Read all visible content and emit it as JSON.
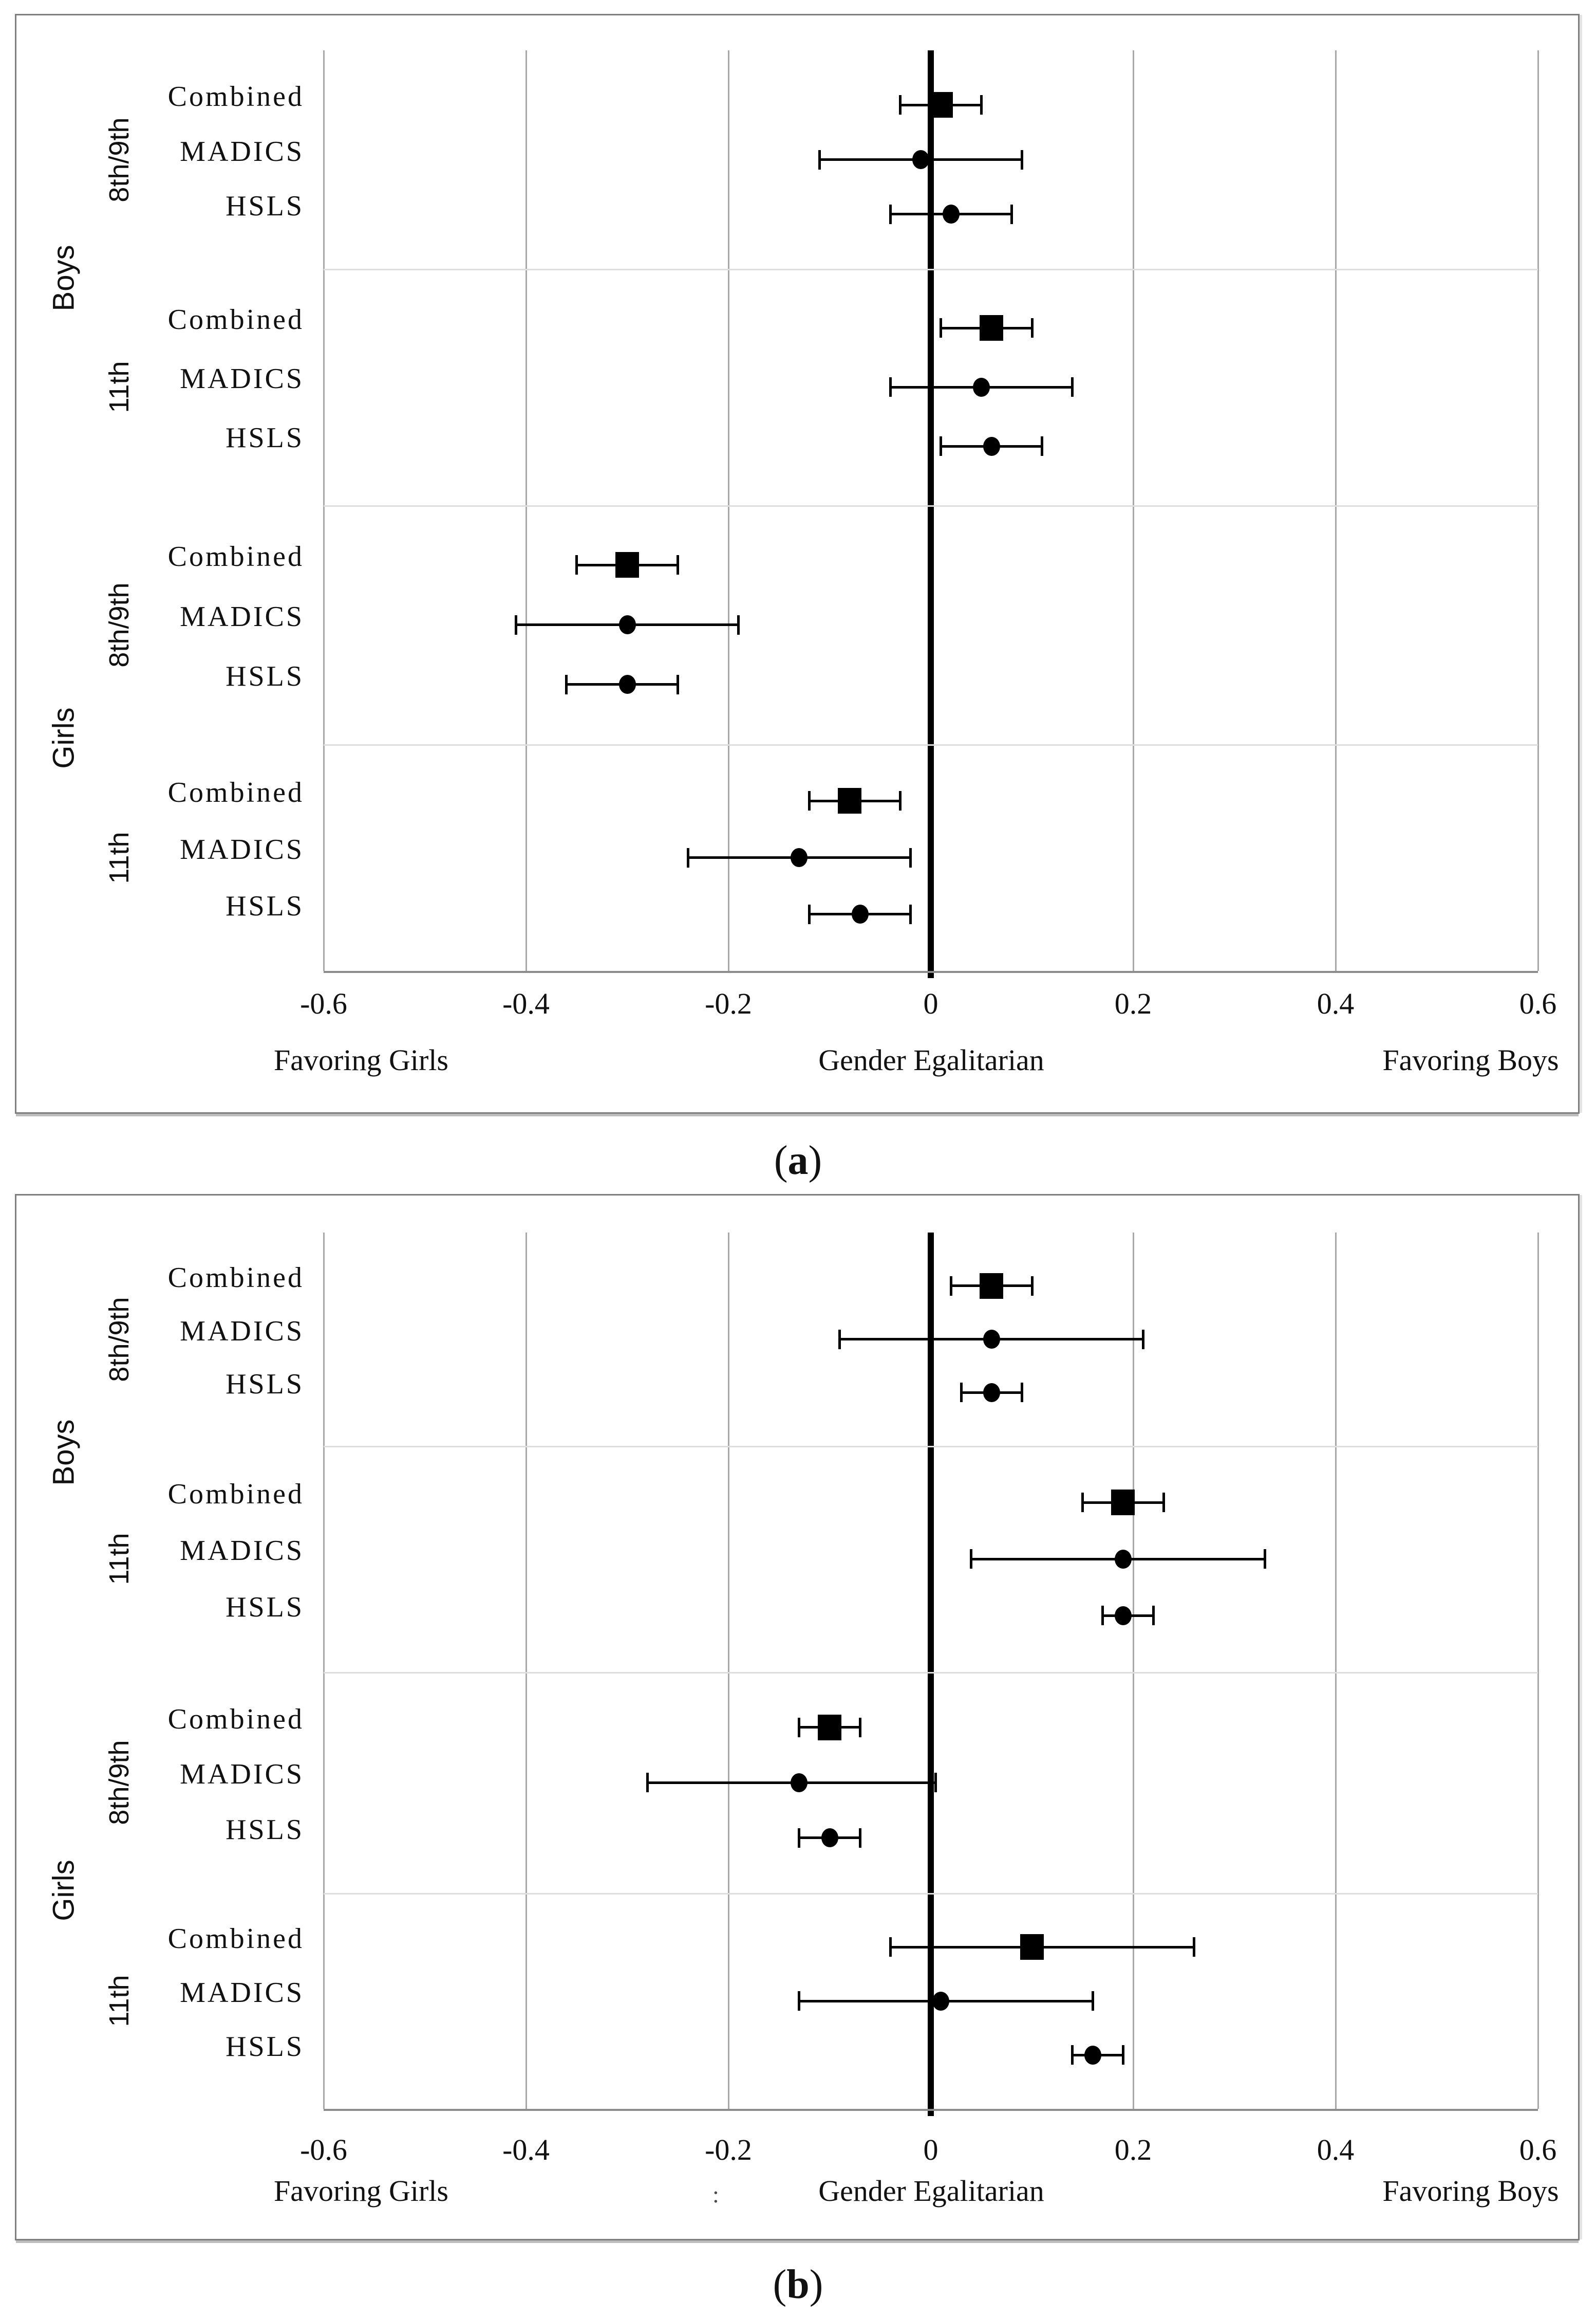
{
  "figure": {
    "captions": {
      "a": {
        "open": "(",
        "letter": "a",
        "close": ")"
      },
      "b": {
        "open": "(",
        "letter": "b",
        "close": ")"
      }
    }
  },
  "chart_data": {
    "type": "scatter",
    "subtype": "forest-plot",
    "layout_hint": "two stacked panels, horizontal error bars, grid on, no legend",
    "colors": {
      "marker": "#000000",
      "zero_line": "#000000",
      "gridline": "#a8a8a8",
      "separator": "#dedede",
      "panel_border": "#7f7f7f",
      "axis_line": "#8c8c8c",
      "text": "#111111"
    },
    "panels": [
      {
        "id": "a",
        "caption": "(a)",
        "axis": {
          "xmin": -0.6,
          "xmax": 0.6,
          "tick_values": [
            -0.6,
            -0.4,
            -0.2,
            0,
            0.2,
            0.4,
            0.6
          ],
          "tick_labels": [
            "-0.6",
            "-0.4",
            "-0.2",
            "0",
            "0.2",
            "0.4",
            "0.6"
          ],
          "left_direction_label": "Favoring Girls",
          "center_direction_label": "Gender Egalitarian",
          "right_direction_label": "Favoring Boys"
        },
        "sections": [
          {
            "label": "Boys"
          },
          {
            "label": "Girls"
          }
        ],
        "groups": [
          {
            "section": "Boys",
            "grade": "8th/9th",
            "rows": [
              {
                "label": "Combined",
                "marker": "square",
                "value": 0.01,
                "ci": [
                  -0.03,
                  0.05
                ]
              },
              {
                "label": "MADICS",
                "marker": "circle",
                "value": -0.01,
                "ci": [
                  -0.11,
                  0.09
                ]
              },
              {
                "label": "HSLS",
                "marker": "circle",
                "value": 0.02,
                "ci": [
                  -0.04,
                  0.08
                ]
              }
            ]
          },
          {
            "section": "Boys",
            "grade": "11th",
            "rows": [
              {
                "label": "Combined",
                "marker": "square",
                "value": 0.06,
                "ci": [
                  0.01,
                  0.1
                ]
              },
              {
                "label": "MADICS",
                "marker": "circle",
                "value": 0.05,
                "ci": [
                  -0.04,
                  0.14
                ]
              },
              {
                "label": "HSLS",
                "marker": "circle",
                "value": 0.06,
                "ci": [
                  0.01,
                  0.11
                ]
              }
            ]
          },
          {
            "section": "Girls",
            "grade": "8th/9th",
            "rows": [
              {
                "label": "Combined",
                "marker": "square",
                "value": -0.3,
                "ci": [
                  -0.35,
                  -0.25
                ]
              },
              {
                "label": "MADICS",
                "marker": "circle",
                "value": -0.3,
                "ci": [
                  -0.41,
                  -0.19
                ]
              },
              {
                "label": "HSLS",
                "marker": "circle",
                "value": -0.3,
                "ci": [
                  -0.36,
                  -0.25
                ]
              }
            ]
          },
          {
            "section": "Girls",
            "grade": "11th",
            "rows": [
              {
                "label": "Combined",
                "marker": "square",
                "value": -0.08,
                "ci": [
                  -0.12,
                  -0.03
                ]
              },
              {
                "label": "MADICS",
                "marker": "circle",
                "value": -0.13,
                "ci": [
                  -0.24,
                  -0.02
                ]
              },
              {
                "label": "HSLS",
                "marker": "circle",
                "value": -0.07,
                "ci": [
                  -0.12,
                  -0.02
                ]
              }
            ]
          }
        ]
      },
      {
        "id": "b",
        "caption": "(b)",
        "stray_mark": ":",
        "axis": {
          "xmin": -0.6,
          "xmax": 0.6,
          "tick_values": [
            -0.6,
            -0.4,
            -0.2,
            0,
            0.2,
            0.4,
            0.6
          ],
          "tick_labels": [
            "-0.6",
            "-0.4",
            "-0.2",
            "0",
            "0.2",
            "0.4",
            "0.6"
          ],
          "left_direction_label": "Favoring Girls",
          "center_direction_label": "Gender Egalitarian",
          "right_direction_label": "Favoring Boys"
        },
        "sections": [
          {
            "label": "Boys"
          },
          {
            "label": "Girls"
          }
        ],
        "groups": [
          {
            "section": "Boys",
            "grade": "8th/9th",
            "rows": [
              {
                "label": "Combined",
                "marker": "square",
                "value": 0.06,
                "ci": [
                  0.02,
                  0.1
                ]
              },
              {
                "label": "MADICS",
                "marker": "circle",
                "value": 0.06,
                "ci": [
                  -0.09,
                  0.21
                ]
              },
              {
                "label": "HSLS",
                "marker": "circle",
                "value": 0.06,
                "ci": [
                  0.03,
                  0.09
                ]
              }
            ]
          },
          {
            "section": "Boys",
            "grade": "11th",
            "rows": [
              {
                "label": "Combined",
                "marker": "square",
                "value": 0.19,
                "ci": [
                  0.15,
                  0.23
                ]
              },
              {
                "label": "MADICS",
                "marker": "circle",
                "value": 0.19,
                "ci": [
                  0.04,
                  0.33
                ]
              },
              {
                "label": "HSLS",
                "marker": "circle",
                "value": 0.19,
                "ci": [
                  0.17,
                  0.22
                ]
              }
            ]
          },
          {
            "section": "Girls",
            "grade": "8th/9th",
            "rows": [
              {
                "label": "Combined",
                "marker": "square",
                "value": -0.1,
                "ci": [
                  -0.13,
                  -0.07
                ]
              },
              {
                "label": "MADICS",
                "marker": "circle",
                "value": -0.13,
                "ci": [
                  -0.28,
                  0.005
                ]
              },
              {
                "label": "HSLS",
                "marker": "circle",
                "value": -0.1,
                "ci": [
                  -0.13,
                  -0.07
                ]
              }
            ]
          },
          {
            "section": "Girls",
            "grade": "11th",
            "rows": [
              {
                "label": "Combined",
                "marker": "square",
                "value": 0.1,
                "ci": [
                  -0.04,
                  0.26
                ]
              },
              {
                "label": "MADICS",
                "marker": "circle",
                "value": 0.01,
                "ci": [
                  -0.13,
                  0.16
                ]
              },
              {
                "label": "HSLS",
                "marker": "circle",
                "value": 0.16,
                "ci": [
                  0.14,
                  0.19
                ]
              }
            ]
          }
        ]
      }
    ]
  }
}
